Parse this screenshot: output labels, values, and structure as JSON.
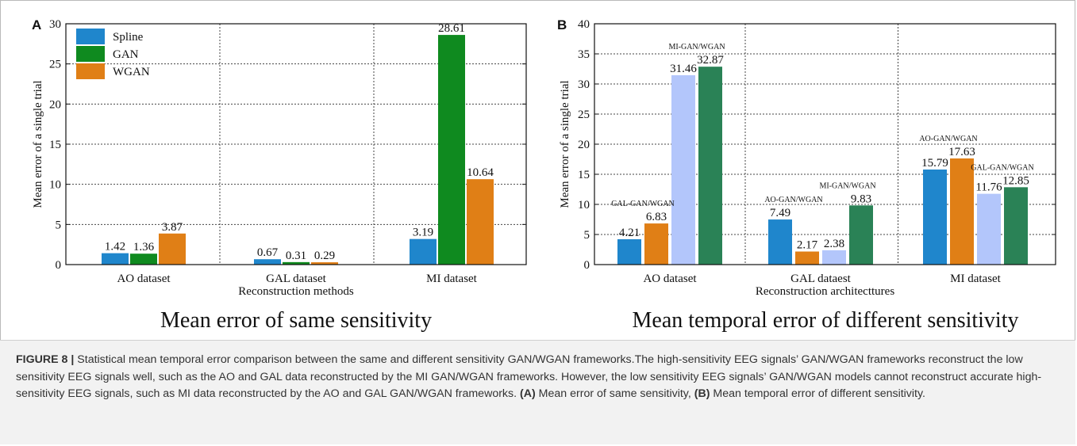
{
  "panels": [
    {
      "letter": "A",
      "title": "Mean error of same sensitivity",
      "chart_data": {
        "type": "bar",
        "title": "Mean error of same sensitivity",
        "xlabel": "Reconstruction methods",
        "ylabel": "Mean error of a single trial",
        "ylim": [
          0,
          30
        ],
        "yticks": [
          0,
          5,
          10,
          15,
          20,
          25,
          30
        ],
        "grid": true,
        "legend_position": "top-left",
        "categories": [
          "AO dataset",
          "GAL  dataset",
          "MI dataset"
        ],
        "series": [
          {
            "name": "Spline",
            "color": "#1f86cc",
            "values": [
              1.42,
              0.67,
              3.19
            ],
            "labels": [
              "1.42",
              "0.67",
              "3.19"
            ]
          },
          {
            "name": "GAN",
            "color": "#0f8a1f",
            "values": [
              1.36,
              0.31,
              28.61
            ],
            "labels": [
              "1.36",
              "0.31",
              "28.61"
            ]
          },
          {
            "name": "WGAN",
            "color": "#e07f16",
            "values": [
              3.87,
              0.29,
              10.64
            ],
            "labels": [
              "3.87",
              "0.29",
              "10.64"
            ]
          }
        ]
      }
    },
    {
      "letter": "B",
      "title": "Mean temporal error of different sensitivity",
      "chart_data": {
        "type": "bar",
        "title": "Mean temporal error of different sensitivity",
        "xlabel": "Reconstruction architecttures",
        "ylabel": "Mean error of a single trial",
        "ylim": [
          0,
          40
        ],
        "yticks": [
          0,
          5,
          10,
          15,
          20,
          25,
          30,
          35,
          40
        ],
        "grid": true,
        "categories": [
          "AO dataset",
          "GAL dataest",
          "MI dataset"
        ],
        "series": [
          {
            "color": "#1f86cc",
            "values": [
              4.21,
              7.49,
              15.79
            ],
            "labels": [
              "4.21",
              "7.49",
              "15.79"
            ]
          },
          {
            "color": "#e07f16",
            "values": [
              6.83,
              2.17,
              17.63
            ],
            "labels": [
              "6.83",
              "2.17",
              "17.63"
            ]
          },
          {
            "color": "#b3c6fb",
            "values": [
              31.46,
              2.38,
              11.76
            ],
            "labels": [
              "31.46",
              "2.38",
              "11.76"
            ]
          },
          {
            "color": "#2a8256",
            "values": [
              32.87,
              9.83,
              12.85
            ],
            "labels": [
              "32.87",
              "9.83",
              "12.85"
            ]
          }
        ],
        "annotations": [
          {
            "text": "GAL-GAN/WGAN",
            "category": 0,
            "bar_pair": 0
          },
          {
            "text": "MI-GAN/WGAN",
            "category": 0,
            "bar_pair": 1
          },
          {
            "text": "AO-GAN/WGAN",
            "category": 1,
            "bar_pair": 0
          },
          {
            "text": "MI-GAN/WGAN",
            "category": 1,
            "bar_pair": 1
          },
          {
            "text": "AO-GAN/WGAN",
            "category": 2,
            "bar_pair": 0
          },
          {
            "text": "GAL-GAN/WGAN",
            "category": 2,
            "bar_pair": 1
          }
        ]
      }
    }
  ],
  "caption": {
    "label": "FIGURE 8 |",
    "text": "Statistical mean temporal error comparison between the same and different sensitivity GAN/WGAN frameworks.The high-sensitivity EEG signals’ GAN/WGAN frameworks reconstruct the low sensitivity EEG signals well, such as the AO and GAL data reconstructed by the MI GAN/WGAN frameworks. However, the low sensitivity EEG signals’ GAN/WGAN models cannot reconstruct accurate high-sensitivity EEG signals, such as MI data reconstructed by the AO and GAL GAN/WGAN frameworks.",
    "part_a_label": "(A)",
    "part_a_text": "Mean error of same sensitivity,",
    "part_b_label": "(B)",
    "part_b_text": "Mean temporal error of different sensitivity."
  }
}
